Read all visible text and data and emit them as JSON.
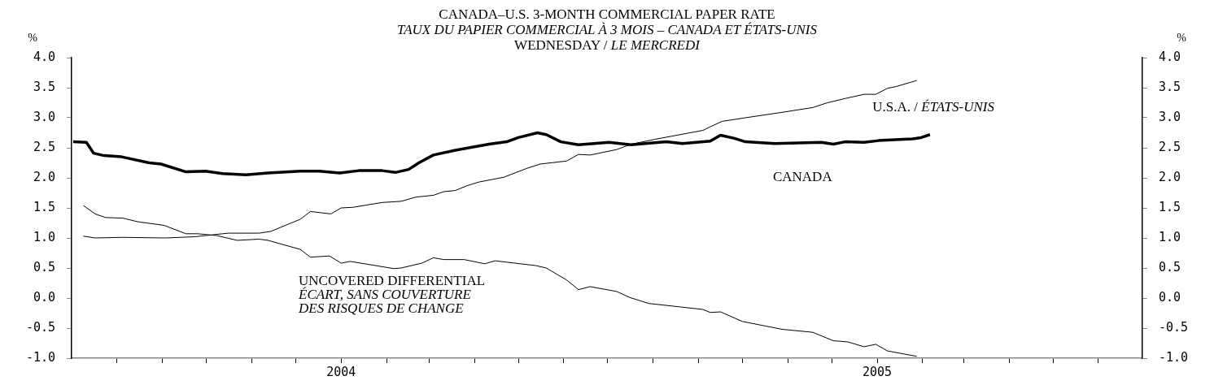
{
  "chart_data": {
    "type": "line",
    "title": "CANADA–U.S. 3-MONTH COMMERCIAL PAPER RATE",
    "subtitle": "TAUX DU PAPIER COMMERCIAL À 3 MOIS – CANADA ET ÉTATS-UNIS\nWEDNESDAY / LE MERCREDI",
    "ylabel": "%",
    "y2label": "%",
    "xlim": [
      "2003-07-01",
      "2005-07-01"
    ],
    "xticks": [
      {
        "value": "2003-08-01",
        "label": null
      },
      {
        "value": "2003-09-01",
        "label": null
      },
      {
        "value": "2003-10-01",
        "label": null
      },
      {
        "value": "2003-11-01",
        "label": null
      },
      {
        "value": "2003-12-01",
        "label": null
      },
      {
        "value": "2004-01-01",
        "label": "2004"
      },
      {
        "value": "2004-02-01",
        "label": null
      },
      {
        "value": "2004-03-01",
        "label": null
      },
      {
        "value": "2004-04-01",
        "label": null
      },
      {
        "value": "2004-05-01",
        "label": null
      },
      {
        "value": "2004-06-01",
        "label": null
      },
      {
        "value": "2004-07-01",
        "label": null
      },
      {
        "value": "2004-08-01",
        "label": null
      },
      {
        "value": "2004-09-01",
        "label": null
      },
      {
        "value": "2004-10-01",
        "label": null
      },
      {
        "value": "2004-11-01",
        "label": null
      },
      {
        "value": "2004-12-01",
        "label": null
      },
      {
        "value": "2005-01-01",
        "label": "2005"
      },
      {
        "value": "2005-02-01",
        "label": null
      },
      {
        "value": "2005-03-01",
        "label": null
      },
      {
        "value": "2005-04-01",
        "label": null
      },
      {
        "value": "2005-05-01",
        "label": null
      },
      {
        "value": "2005-06-01",
        "label": null
      }
    ],
    "ylim": [
      -1,
      4
    ],
    "yticks": [
      {
        "value": -1,
        "label": "-1.0"
      },
      {
        "value": -0.5,
        "label": "-0.5"
      },
      {
        "value": 0,
        "label": "0.0"
      },
      {
        "value": 0.5,
        "label": "0.5"
      },
      {
        "value": 1,
        "label": "1.0"
      },
      {
        "value": 1.5,
        "label": "1.5"
      },
      {
        "value": 2,
        "label": "2.0"
      },
      {
        "value": 2.5,
        "label": "2.5"
      },
      {
        "value": 3,
        "label": "3.0"
      },
      {
        "value": 3.5,
        "label": "3.5"
      },
      {
        "value": 4,
        "label": "4.0"
      }
    ],
    "y2lim": [
      -1,
      4
    ],
    "y2ticks": [
      {
        "value": -1,
        "label": "-1.0"
      },
      {
        "value": -0.5,
        "label": "-0.5"
      },
      {
        "value": 0,
        "label": "0.0"
      },
      {
        "value": 0.5,
        "label": "0.5"
      },
      {
        "value": 1,
        "label": "1.0"
      },
      {
        "value": 1.5,
        "label": "1.5"
      },
      {
        "value": 2,
        "label": "2.0"
      },
      {
        "value": 2.5,
        "label": "2.5"
      },
      {
        "value": 3,
        "label": "3.0"
      },
      {
        "value": 3.5,
        "label": "3.5"
      },
      {
        "value": 4,
        "label": "4.0"
      }
    ],
    "marker": "none",
    "line_style": "solid",
    "series": [
      {
        "name": "CANADA",
        "color": "#000000",
        "x": [
          "2003-07-02",
          "2003-07-11",
          "2003-07-16",
          "2003-07-23",
          "2003-08-04",
          "2003-08-23",
          "2003-08-31",
          "2003-09-17",
          "2003-10-01",
          "2003-10-12",
          "2003-10-28",
          "2003-11-12",
          "2003-12-04",
          "2003-12-17",
          "2003-12-31",
          "2004-01-13",
          "2004-01-29",
          "2004-02-07",
          "2004-02-16",
          "2004-02-23",
          "2004-03-04",
          "2004-03-19",
          "2004-04-04",
          "2004-04-11",
          "2004-04-23",
          "2004-05-01",
          "2004-05-14",
          "2004-05-20",
          "2004-05-30",
          "2004-06-11",
          "2004-07-02",
          "2004-07-17",
          "2004-08-10",
          "2004-08-21",
          "2004-09-09",
          "2004-09-16",
          "2004-09-25",
          "2004-10-03",
          "2004-10-23",
          "2004-11-24",
          "2004-12-02",
          "2004-12-10",
          "2004-12-23",
          "2005-01-02",
          "2005-01-25",
          "2005-01-31",
          "2005-02-06"
        ],
        "values": [
          2.6,
          2.59,
          2.41,
          2.37,
          2.35,
          2.25,
          2.23,
          2.1,
          2.11,
          2.07,
          2.05,
          2.08,
          2.11,
          2.11,
          2.08,
          2.12,
          2.12,
          2.09,
          2.14,
          2.25,
          2.38,
          2.46,
          2.53,
          2.56,
          2.6,
          2.67,
          2.75,
          2.72,
          2.6,
          2.55,
          2.59,
          2.55,
          2.6,
          2.57,
          2.61,
          2.71,
          2.66,
          2.6,
          2.57,
          2.59,
          2.56,
          2.6,
          2.59,
          2.62,
          2.65,
          2.67,
          2.72
        ]
      },
      {
        "name": "U.S.A. / ÉTATS-UNIS",
        "color": "#000000",
        "x": [
          "2003-07-09",
          "2003-07-17",
          "2003-08-05",
          "2003-09-03",
          "2003-09-23",
          "2003-10-12",
          "2003-10-16",
          "2003-11-06",
          "2003-11-14",
          "2003-12-04",
          "2003-12-11",
          "2003-12-25",
          "2004-01-01",
          "2004-01-09",
          "2004-01-29",
          "2004-02-11",
          "2004-02-21",
          "2004-03-04",
          "2004-03-11",
          "2004-03-19",
          "2004-03-27",
          "2004-04-04",
          "2004-04-21",
          "2004-05-07",
          "2004-05-16",
          "2004-06-03",
          "2004-06-11",
          "2004-06-19",
          "2004-07-07",
          "2004-07-17",
          "2004-08-02",
          "2004-09-04",
          "2004-09-09",
          "2004-09-17",
          "2004-10-03",
          "2004-10-28",
          "2004-11-18",
          "2004-11-28",
          "2004-12-10",
          "2004-12-23",
          "2004-12-31",
          "2005-01-08",
          "2005-01-14",
          "2005-01-28"
        ],
        "values": [
          1.03,
          1.0,
          1.01,
          1.0,
          1.02,
          1.07,
          1.08,
          1.08,
          1.11,
          1.31,
          1.44,
          1.4,
          1.5,
          1.51,
          1.59,
          1.61,
          1.68,
          1.71,
          1.77,
          1.79,
          1.87,
          1.93,
          2.01,
          2.16,
          2.23,
          2.28,
          2.39,
          2.38,
          2.47,
          2.56,
          2.64,
          2.79,
          2.85,
          2.94,
          3.0,
          3.09,
          3.17,
          3.25,
          3.32,
          3.39,
          3.39,
          3.49,
          3.52,
          3.62
        ]
      },
      {
        "name": "UNCOVERED DIFFERENTIAL\nÉCART, SANS COUVERTURE\nDES RISQUES DE CHANGE",
        "color": "#000000",
        "x": [
          "2003-07-09",
          "2003-07-17",
          "2003-07-24",
          "2003-08-05",
          "2003-08-15",
          "2003-09-02",
          "2003-09-17",
          "2003-09-25",
          "2003-10-08",
          "2003-10-22",
          "2003-11-06",
          "2003-11-12",
          "2003-12-04",
          "2003-12-11",
          "2003-12-24",
          "2004-01-01",
          "2004-01-07",
          "2004-02-06",
          "2004-02-11",
          "2004-02-25",
          "2004-03-04",
          "2004-03-11",
          "2004-03-25",
          "2004-04-08",
          "2004-04-15",
          "2004-05-13",
          "2004-05-20",
          "2004-06-03",
          "2004-06-11",
          "2004-06-19",
          "2004-07-07",
          "2004-07-16",
          "2004-07-29",
          "2004-09-04",
          "2004-09-09",
          "2004-09-16",
          "2004-10-01",
          "2004-10-28",
          "2004-11-18",
          "2004-12-02",
          "2004-12-12",
          "2004-12-23",
          "2004-12-31",
          "2005-01-08",
          "2005-01-28"
        ],
        "values": [
          1.54,
          1.4,
          1.34,
          1.33,
          1.27,
          1.21,
          1.07,
          1.07,
          1.04,
          0.96,
          0.98,
          0.96,
          0.81,
          0.68,
          0.7,
          0.58,
          0.61,
          0.49,
          0.5,
          0.58,
          0.67,
          0.64,
          0.64,
          0.57,
          0.62,
          0.54,
          0.5,
          0.3,
          0.14,
          0.19,
          0.11,
          0.01,
          -0.09,
          -0.19,
          -0.24,
          -0.23,
          -0.39,
          -0.52,
          -0.57,
          -0.71,
          -0.73,
          -0.81,
          -0.77,
          -0.88,
          -0.97
        ]
      }
    ]
  }
}
